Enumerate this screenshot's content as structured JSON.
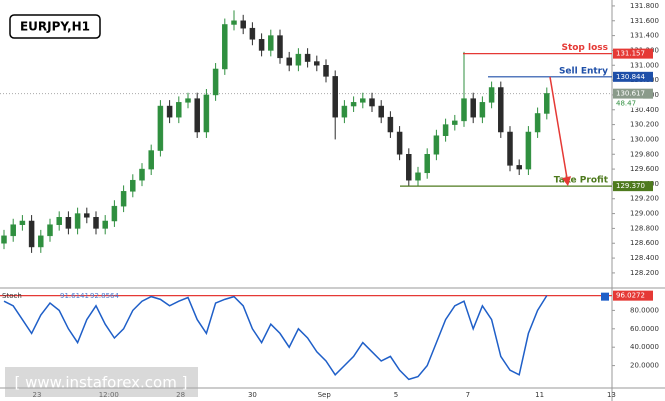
{
  "chart_data": [
    {
      "type": "candlestick",
      "title": "EURJPY,H1",
      "open": [
        128.6,
        128.7,
        128.85,
        128.9,
        128.55,
        128.7,
        128.85,
        128.95,
        128.8,
        129.0,
        128.95,
        128.8,
        128.9,
        129.1,
        129.3,
        129.45,
        129.6,
        129.85,
        130.45,
        130.3,
        130.5,
        130.55,
        130.1,
        130.6,
        130.95,
        131.55,
        131.6,
        131.5,
        131.35,
        131.2,
        131.4,
        131.1,
        131.0,
        131.15,
        131.05,
        131.0,
        130.85,
        130.3,
        130.45,
        130.5,
        130.55,
        130.45,
        130.3,
        130.1,
        129.8,
        129.45,
        129.55,
        129.8,
        130.05,
        130.2,
        130.25,
        130.55,
        130.3,
        130.5,
        130.7,
        130.1,
        129.65,
        129.6,
        130.1,
        130.35
      ],
      "high": [
        128.78,
        128.93,
        128.98,
        128.98,
        128.78,
        128.93,
        129.03,
        129.03,
        129.08,
        129.08,
        129.03,
        128.98,
        129.18,
        129.38,
        129.53,
        129.68,
        129.93,
        130.53,
        130.53,
        130.58,
        130.63,
        130.63,
        130.68,
        131.03,
        131.63,
        131.74,
        131.68,
        131.58,
        131.43,
        131.48,
        131.48,
        131.18,
        131.23,
        131.23,
        131.13,
        131.08,
        130.93,
        130.53,
        130.58,
        130.63,
        130.63,
        130.53,
        130.38,
        130.18,
        129.88,
        129.63,
        129.88,
        130.13,
        130.28,
        130.33,
        131.18,
        130.63,
        130.58,
        130.78,
        130.78,
        130.18,
        129.73,
        130.18,
        130.43,
        130.7
      ],
      "low": [
        128.52,
        128.62,
        128.77,
        128.47,
        128.47,
        128.62,
        128.77,
        128.72,
        128.72,
        128.87,
        128.72,
        128.72,
        128.82,
        129.02,
        129.22,
        129.37,
        129.52,
        129.77,
        130.22,
        130.22,
        130.42,
        130.02,
        130.02,
        130.52,
        130.87,
        131.47,
        131.42,
        131.27,
        131.12,
        131.12,
        131.02,
        130.92,
        130.92,
        130.97,
        130.92,
        130.77,
        130.0,
        130.22,
        130.37,
        130.42,
        130.37,
        130.22,
        130.02,
        129.72,
        129.37,
        129.37,
        129.47,
        129.72,
        129.97,
        130.12,
        130.17,
        130.22,
        130.22,
        130.42,
        130.02,
        129.57,
        129.52,
        129.52,
        130.02,
        130.27
      ],
      "close": [
        128.7,
        128.85,
        128.9,
        128.55,
        128.7,
        128.85,
        128.95,
        128.8,
        129.0,
        128.95,
        128.8,
        128.9,
        129.1,
        129.3,
        129.45,
        129.6,
        129.85,
        130.45,
        130.3,
        130.5,
        130.55,
        130.1,
        130.6,
        130.95,
        131.55,
        131.6,
        131.5,
        131.35,
        131.2,
        131.4,
        131.1,
        131.0,
        131.15,
        131.05,
        131.0,
        130.85,
        130.3,
        130.45,
        130.5,
        130.55,
        130.45,
        130.3,
        130.1,
        129.8,
        129.45,
        129.55,
        129.8,
        130.05,
        130.2,
        130.25,
        130.55,
        130.3,
        130.5,
        130.7,
        130.1,
        129.65,
        129.6,
        130.1,
        130.35,
        130.62
      ],
      "up_color": "#2f8f3f",
      "down_color": "#2b2b2b",
      "ylim": [
        128.01,
        131.88
      ],
      "yticks": [
        {
          "value": 131.8,
          "label": "131.800"
        },
        {
          "value": 131.6,
          "label": "131.600"
        },
        {
          "value": 131.4,
          "label": "131.400"
        },
        {
          "value": 131.2,
          "label": "131.200"
        },
        {
          "value": 131.0,
          "label": "131.000"
        },
        {
          "value": 130.8,
          "label": "130.800"
        },
        {
          "value": 130.6,
          "label": "130.600"
        },
        {
          "value": 130.4,
          "label": "130.400"
        },
        {
          "value": 130.2,
          "label": "130.200"
        },
        {
          "value": 130.0,
          "label": "130.000"
        },
        {
          "value": 129.8,
          "label": "129.800"
        },
        {
          "value": 129.6,
          "label": "129.600"
        },
        {
          "value": 129.4,
          "label": "129.400"
        },
        {
          "value": 129.2,
          "label": "129.200"
        },
        {
          "value": 129.0,
          "label": "129.000"
        },
        {
          "value": 128.8,
          "label": "128.800"
        },
        {
          "value": 128.6,
          "label": "128.600"
        },
        {
          "value": 128.4,
          "label": "128.400"
        },
        {
          "value": 128.2,
          "label": "128.200"
        }
      ],
      "levels": [
        {
          "name": "Stop loss",
          "value": 131.157,
          "color": "#e53935"
        },
        {
          "name": "Sell Entry",
          "value": 130.844,
          "color": "#1e4fa8"
        },
        {
          "name": "Take Profit",
          "value": 129.37,
          "value_label": "129.370",
          "color": "#4e7a1e"
        }
      ],
      "current_price": 130.617,
      "timer_label": "48.47",
      "x_labels": [
        "23",
        "12:00",
        "28",
        "30",
        "Sep",
        "5",
        "7",
        "11",
        "13"
      ],
      "watermark": "[ www.instaforex.com ]"
    },
    {
      "type": "line",
      "name": "Stoch",
      "legend_values": [
        "91.6141",
        "92.8564"
      ],
      "color": "#1f5fc8",
      "values": [
        90,
        85,
        70,
        55,
        75,
        88,
        80,
        60,
        45,
        70,
        85,
        65,
        50,
        60,
        80,
        90,
        95,
        92,
        85,
        90,
        94,
        70,
        55,
        88,
        92,
        95,
        85,
        60,
        45,
        65,
        55,
        40,
        60,
        50,
        35,
        25,
        10,
        20,
        30,
        45,
        35,
        25,
        30,
        15,
        5,
        8,
        20,
        45,
        70,
        85,
        90,
        60,
        85,
        70,
        30,
        15,
        10,
        55,
        80,
        96.0272
      ],
      "ylim": [
        0,
        100
      ],
      "yticks": [
        {
          "value": 80,
          "label": "80.0000"
        },
        {
          "value": 60,
          "label": "60.0000"
        },
        {
          "value": 40,
          "label": "40.0000"
        },
        {
          "value": 20,
          "label": "20.0000"
        }
      ]
    }
  ]
}
